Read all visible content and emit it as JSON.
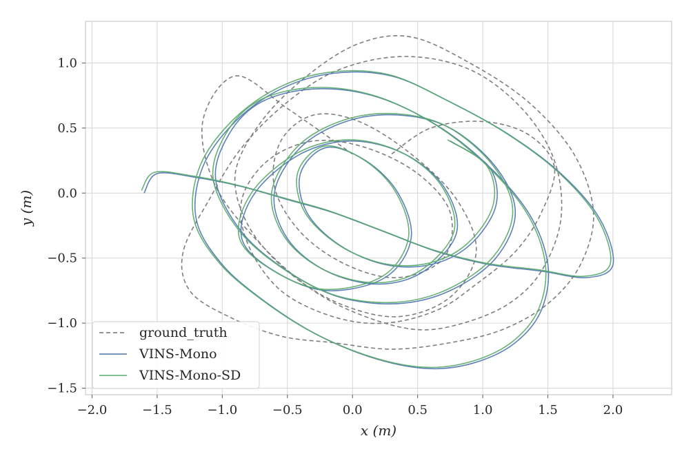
{
  "chart_data": {
    "type": "line",
    "xlabel": "x (m)",
    "ylabel": "y (m)",
    "xlim": [
      -2.05,
      2.45
    ],
    "ylim": [
      -1.55,
      1.32
    ],
    "xticks": [
      -2.0,
      -1.5,
      -1.0,
      -0.5,
      0.0,
      0.5,
      1.0,
      1.5,
      2.0
    ],
    "xtick_labels": [
      "−2.0",
      "−1.5",
      "−1.0",
      "−0.5",
      "0.0",
      "0.5",
      "1.0",
      "1.5",
      "2.0"
    ],
    "yticks": [
      -1.5,
      -1.0,
      -0.5,
      0.0,
      0.5,
      1.0
    ],
    "ytick_labels": [
      "−1.5",
      "−1.0",
      "−0.5",
      "0.0",
      "0.5",
      "1.0"
    ],
    "grid": true,
    "legend_position": "lower-left",
    "series": [
      {
        "name": "ground_truth",
        "color": "#707070",
        "dash": true,
        "x": [
          0.0,
          -0.5,
          -0.9,
          -1.15,
          -1.05,
          -0.7,
          -0.3,
          0.1,
          0.5,
          0.85,
          1.2,
          1.45,
          1.6,
          1.55,
          1.3,
          0.9,
          0.4,
          -0.1,
          -0.5,
          -0.85,
          -1.1,
          -1.3,
          -1.25,
          -0.95,
          -0.55,
          -0.15,
          0.3,
          0.75,
          1.15,
          1.5,
          1.75,
          1.85,
          1.7,
          1.35,
          0.9,
          0.45,
          0.05,
          -0.35,
          -0.7,
          -0.9,
          -0.8,
          -0.5,
          -0.1,
          0.35,
          0.75,
          0.95,
          0.8,
          0.45,
          0.05,
          -0.3,
          -0.55,
          -0.6,
          -0.4,
          -0.05,
          0.35,
          0.7,
          0.75,
          0.5,
          0.1,
          -0.3,
          -0.65,
          -0.85,
          -0.8,
          -0.55,
          -0.15,
          0.25,
          0.65,
          0.95,
          1.25,
          1.45,
          1.55,
          1.35,
          1.0,
          0.6,
          0.3
        ],
        "y": [
          0.3,
          0.65,
          0.9,
          0.55,
          0.05,
          -0.4,
          -0.75,
          -0.95,
          -1.05,
          -1.0,
          -0.85,
          -0.6,
          -0.2,
          0.25,
          0.65,
          0.95,
          1.05,
          0.95,
          0.7,
          0.35,
          -0.05,
          -0.45,
          -0.75,
          -0.95,
          -1.1,
          -1.15,
          -1.2,
          -1.15,
          -1.05,
          -0.85,
          -0.55,
          -0.15,
          0.3,
          0.7,
          1.0,
          1.2,
          1.15,
          0.9,
          0.55,
          0.15,
          -0.25,
          -0.6,
          -0.85,
          -0.95,
          -0.8,
          -0.45,
          -0.05,
          0.3,
          0.55,
          0.6,
          0.4,
          0.05,
          -0.3,
          -0.55,
          -0.65,
          -0.5,
          -0.15,
          0.15,
          0.35,
          0.4,
          0.25,
          -0.05,
          -0.4,
          -0.75,
          -0.95,
          -1.0,
          -0.9,
          -0.7,
          -0.45,
          -0.15,
          0.2,
          0.45,
          0.55,
          0.5,
          0.3
        ]
      },
      {
        "name": "VINS-Mono",
        "color": "#4c72b0",
        "dash": false,
        "x": [
          -1.6,
          -1.5,
          -1.2,
          -0.85,
          -0.5,
          -0.15,
          0.25,
          0.65,
          1.05,
          1.45,
          1.8,
          2.0,
          1.9,
          1.6,
          1.2,
          0.75,
          0.3,
          -0.15,
          -0.55,
          -0.9,
          -1.15,
          -1.2,
          -1.0,
          -0.65,
          -0.25,
          0.2,
          0.6,
          0.95,
          1.25,
          1.45,
          1.5,
          1.35,
          1.0,
          0.6,
          0.15,
          -0.3,
          -0.7,
          -0.95,
          -1.05,
          -0.85,
          -0.5,
          -0.1,
          0.35,
          0.75,
          1.1,
          1.25,
          1.1,
          0.75,
          0.35,
          -0.05,
          -0.4,
          -0.6,
          -0.5,
          -0.2,
          0.2,
          0.55,
          0.8,
          0.7,
          0.4,
          0.0,
          -0.4,
          -0.75,
          -0.85,
          -0.6,
          -0.2,
          0.25,
          0.45,
          0.35,
          0.1,
          -0.2,
          -0.4,
          -0.35,
          -0.1,
          0.25,
          0.6,
          0.9,
          1.1,
          1.05,
          0.75
        ],
        "y": [
          0.0,
          0.15,
          0.12,
          0.05,
          -0.05,
          -0.15,
          -0.3,
          -0.45,
          -0.55,
          -0.6,
          -0.65,
          -0.55,
          -0.2,
          0.15,
          0.45,
          0.7,
          0.9,
          0.92,
          0.8,
          0.55,
          0.2,
          -0.2,
          -0.55,
          -0.85,
          -1.1,
          -1.28,
          -1.35,
          -1.3,
          -1.15,
          -0.9,
          -0.55,
          -0.15,
          0.25,
          0.55,
          0.75,
          0.8,
          0.7,
          0.45,
          0.1,
          -0.3,
          -0.6,
          -0.8,
          -0.85,
          -0.75,
          -0.5,
          -0.15,
          0.2,
          0.5,
          0.6,
          0.55,
          0.35,
          0.0,
          -0.35,
          -0.6,
          -0.7,
          -0.6,
          -0.3,
          0.05,
          0.3,
          0.4,
          0.3,
          0.0,
          -0.35,
          -0.6,
          -0.75,
          -0.65,
          -0.35,
          0.0,
          0.25,
          0.35,
          0.15,
          -0.15,
          -0.4,
          -0.55,
          -0.55,
          -0.4,
          -0.1,
          0.2,
          0.4
        ]
      },
      {
        "name": "VINS-Mono-SD",
        "color": "#55a868",
        "dash": false,
        "x": [
          -1.62,
          -1.52,
          -1.22,
          -0.88,
          -0.52,
          -0.17,
          0.23,
          0.63,
          1.03,
          1.43,
          1.78,
          1.98,
          1.88,
          1.58,
          1.18,
          0.73,
          0.28,
          -0.17,
          -0.57,
          -0.92,
          -1.17,
          -1.22,
          -1.02,
          -0.67,
          -0.27,
          0.18,
          0.58,
          0.93,
          1.23,
          1.43,
          1.48,
          1.33,
          0.98,
          0.58,
          0.13,
          -0.32,
          -0.72,
          -0.97,
          -1.07,
          -0.87,
          -0.52,
          -0.12,
          0.33,
          0.73,
          1.08,
          1.23,
          1.08,
          0.73,
          0.33,
          -0.07,
          -0.42,
          -0.62,
          -0.52,
          -0.22,
          0.18,
          0.53,
          0.78,
          0.68,
          0.38,
          -0.02,
          -0.42,
          -0.77,
          -0.87,
          -0.62,
          -0.22,
          0.23,
          0.43,
          0.33,
          0.08,
          -0.22,
          -0.42,
          -0.37,
          -0.12,
          0.23,
          0.58,
          0.88,
          1.08,
          1.03,
          0.73
        ],
        "y": [
          0.02,
          0.16,
          0.13,
          0.06,
          -0.04,
          -0.14,
          -0.29,
          -0.44,
          -0.54,
          -0.59,
          -0.64,
          -0.54,
          -0.19,
          0.16,
          0.46,
          0.71,
          0.91,
          0.93,
          0.81,
          0.56,
          0.21,
          -0.19,
          -0.54,
          -0.84,
          -1.09,
          -1.27,
          -1.34,
          -1.29,
          -1.14,
          -0.89,
          -0.54,
          -0.14,
          0.26,
          0.56,
          0.76,
          0.81,
          0.71,
          0.46,
          0.11,
          -0.29,
          -0.59,
          -0.79,
          -0.84,
          -0.74,
          -0.49,
          -0.14,
          0.21,
          0.51,
          0.61,
          0.56,
          0.36,
          0.01,
          -0.34,
          -0.59,
          -0.69,
          -0.59,
          -0.29,
          0.06,
          0.31,
          0.41,
          0.31,
          0.01,
          -0.34,
          -0.59,
          -0.74,
          -0.64,
          -0.34,
          0.01,
          0.26,
          0.36,
          0.16,
          -0.14,
          -0.39,
          -0.54,
          -0.54,
          -0.39,
          -0.09,
          0.21,
          0.41
        ]
      }
    ]
  }
}
